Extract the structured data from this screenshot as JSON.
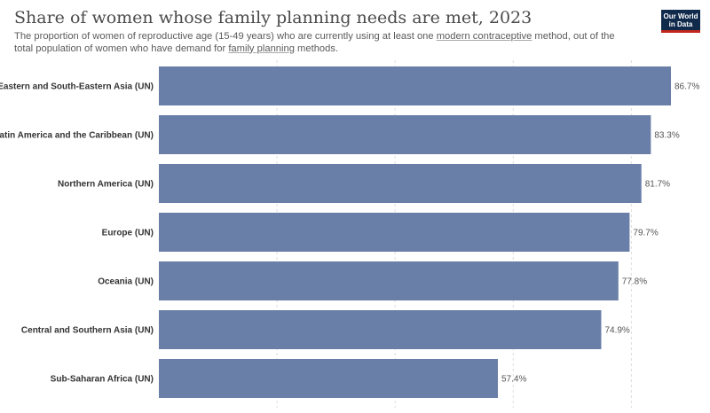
{
  "header": {
    "title": "Share of women whose family planning needs are met, 2023",
    "subtitle_parts": [
      "The proportion of women of reproductive age (15-49 years) who are currently using at least one ",
      "modern contraceptive",
      " method, out of the total population of women who have demand for ",
      "family planning",
      " methods."
    ]
  },
  "logo": {
    "line1": "Our World",
    "line2": "in Data"
  },
  "colors": {
    "bar": "#6a7fa8",
    "grid": "#dddddd",
    "logo_bg": "#102a4c",
    "logo_accent": "#c2271d"
  },
  "chart_data": {
    "type": "bar",
    "orientation": "horizontal",
    "categories": [
      "Eastern and South-Eastern Asia (UN)",
      "Latin America and the Caribbean (UN)",
      "Northern America (UN)",
      "Europe (UN)",
      "Oceania (UN)",
      "Central and Southern Asia (UN)",
      "Sub-Saharan Africa (UN)"
    ],
    "values": [
      86.7,
      83.3,
      81.7,
      79.7,
      77.8,
      74.9,
      57.4
    ],
    "value_labels": [
      "86.7%",
      "83.3%",
      "81.7%",
      "79.7%",
      "77.8%",
      "74.9%",
      "57.4%"
    ],
    "xlim": [
      0,
      86.7
    ],
    "gridlines": [
      0,
      20,
      40,
      60,
      80
    ],
    "grid": true,
    "legend": "none"
  }
}
